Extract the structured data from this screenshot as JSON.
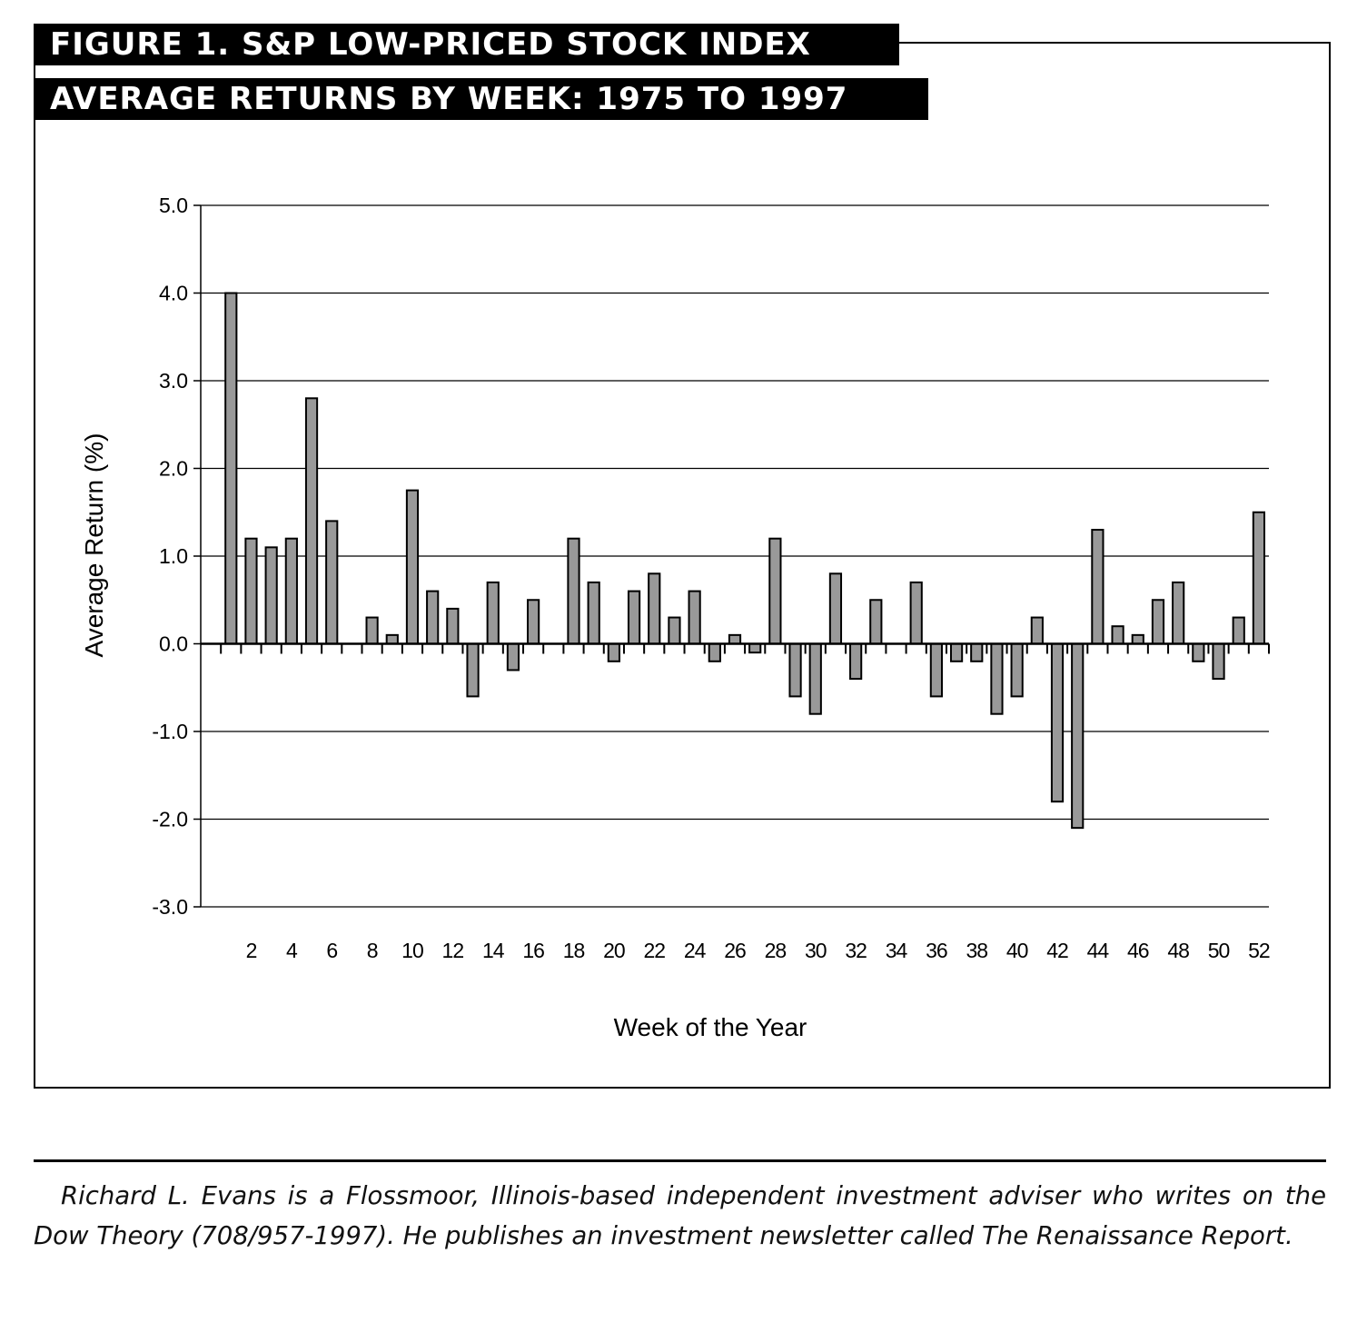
{
  "figure": {
    "title_line1": "FIGURE  1. S&P LOW-PRICED STOCK INDEX",
    "title_line2": "AVERAGE RETURNS BY WEEK: 1975 TO 1997"
  },
  "chart_data": {
    "type": "bar",
    "title": "FIGURE 1. S&P LOW-PRICED STOCK INDEX AVERAGE RETURNS BY WEEK: 1975 TO 1997",
    "xlabel": "Week of the Year",
    "ylabel": "Average Return (%)",
    "ylim": [
      -3.0,
      5.0
    ],
    "yticks": [
      "5.0",
      "4.0",
      "3.0",
      "2.0",
      "1.0",
      "0.0",
      "-1.0",
      "-2.0",
      "-3.0"
    ],
    "xtick_labels": [
      "2",
      "4",
      "6",
      "8",
      "10",
      "12",
      "14",
      "16",
      "18",
      "20",
      "22",
      "24",
      "26",
      "28",
      "30",
      "32",
      "34",
      "36",
      "38",
      "40",
      "42",
      "44",
      "46",
      "48",
      "50",
      "52"
    ],
    "grid": true,
    "bar_color": "#999999",
    "categories": [
      1,
      2,
      3,
      4,
      5,
      6,
      7,
      8,
      9,
      10,
      11,
      12,
      13,
      14,
      15,
      16,
      17,
      18,
      19,
      20,
      21,
      22,
      23,
      24,
      25,
      26,
      27,
      28,
      29,
      30,
      31,
      32,
      33,
      34,
      35,
      36,
      37,
      38,
      39,
      40,
      41,
      42,
      43,
      44,
      45,
      46,
      47,
      48,
      49,
      50,
      51,
      52
    ],
    "values": [
      4.0,
      1.2,
      1.1,
      1.2,
      2.8,
      1.4,
      0.0,
      0.3,
      0.1,
      1.75,
      0.6,
      0.4,
      -0.6,
      0.7,
      -0.3,
      0.5,
      0.0,
      1.2,
      0.7,
      -0.2,
      0.6,
      0.8,
      0.3,
      0.6,
      -0.2,
      0.1,
      -0.1,
      1.2,
      -0.6,
      -0.8,
      0.8,
      -0.4,
      0.5,
      0.0,
      0.7,
      -0.6,
      -0.2,
      -0.2,
      -0.8,
      -0.6,
      0.3,
      -1.8,
      -2.1,
      1.3,
      0.2,
      0.1,
      0.5,
      0.7,
      -0.2,
      -0.4,
      0.3,
      1.5
    ]
  },
  "caption": "Richard L. Evans is a Flossmoor, Illinois-based independent investment adviser who writes on the Dow Theory (708/957-1997). He publishes an investment newsletter called The Renaissance Report."
}
